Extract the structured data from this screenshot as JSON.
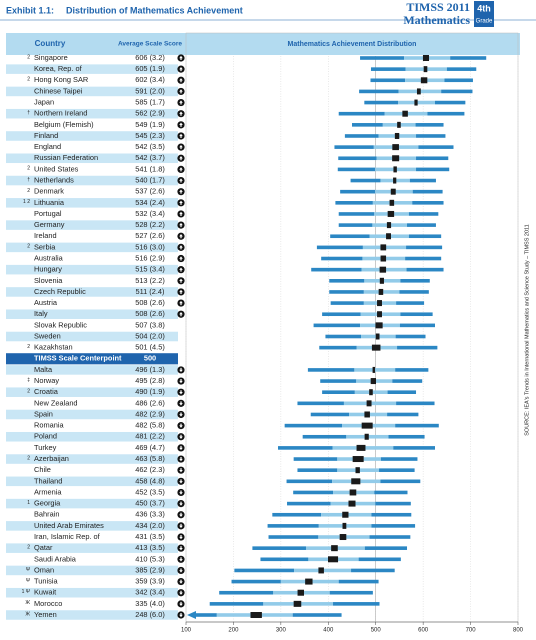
{
  "chart_data": {
    "type": "distribution",
    "exhibit": "Exhibit 1.1:",
    "title": "Distribution of Mathematics Achievement",
    "logo": {
      "name": "TIMSS 2011",
      "subject": "Mathematics",
      "grade": "4th",
      "grade_word": "Grade"
    },
    "country_header": "Country",
    "score_header": "Average Scale Score",
    "dist_header": "Mathematics Achievement Distribution",
    "source": "SOURCE: IEA's Trends in International Mathematics and Science Study – TIMSS 2011",
    "centerpoint": {
      "label": "TIMSS Scale Centerpoint",
      "value": 500
    },
    "categories": [
      "Singapore",
      "Korea, Rep. of",
      "Hong Kong SAR",
      "Chinese Taipei",
      "Japan",
      "Northern Ireland",
      "Belgium (Flemish)",
      "Finland",
      "England",
      "Russian Federation",
      "United States",
      "Netherlands",
      "Denmark",
      "Lithuania",
      "Portugal",
      "Germany",
      "Ireland",
      "Serbia",
      "Australia",
      "Hungary",
      "Slovenia",
      "Czech Republic",
      "Austria",
      "Italy",
      "Slovak Republic",
      "Sweden",
      "Kazakhstan",
      "Malta",
      "Norway",
      "Croatia",
      "New Zealand",
      "Spain",
      "Romania",
      "Poland",
      "Turkey",
      "Azerbaijan",
      "Chile",
      "Thailand",
      "Armenia",
      "Georgia",
      "Bahrain",
      "United Arab Emirates",
      "Iran, Islamic Rep. of",
      "Qatar",
      "Saudi Arabia",
      "Oman",
      "Tunisia",
      "Kuwait",
      "Morocco",
      "Yemen"
    ],
    "notes": [
      "2",
      null,
      "2",
      null,
      null,
      "†",
      null,
      null,
      null,
      null,
      "2",
      "†",
      "2",
      "1 2",
      null,
      null,
      null,
      "2",
      null,
      null,
      null,
      null,
      null,
      null,
      null,
      null,
      "2",
      null,
      "‡",
      "2",
      null,
      null,
      null,
      null,
      null,
      "2",
      null,
      null,
      null,
      "1",
      null,
      null,
      null,
      "2",
      null,
      "Ψ",
      "Ψ",
      "1 Ψ",
      "Ж",
      "Ж"
    ],
    "values": [
      606,
      605,
      602,
      591,
      585,
      562,
      549,
      545,
      542,
      542,
      541,
      540,
      537,
      534,
      532,
      528,
      527,
      516,
      516,
      515,
      513,
      511,
      508,
      508,
      507,
      504,
      501,
      496,
      495,
      490,
      486,
      482,
      482,
      481,
      469,
      463,
      462,
      458,
      452,
      450,
      436,
      434,
      431,
      413,
      410,
      385,
      359,
      342,
      335,
      248
    ],
    "value_labels": [
      "606 (3.2)",
      "605 (1.9)",
      "602 (3.4)",
      "591 (2.0)",
      "585 (1.7)",
      "562 (2.9)",
      "549 (1.9)",
      "545 (2.3)",
      "542 (3.5)",
      "542 (3.7)",
      "541 (1.8)",
      "540 (1.7)",
      "537 (2.6)",
      "534 (2.4)",
      "532 (3.4)",
      "528 (2.2)",
      "527 (2.6)",
      "516 (3.0)",
      "516 (2.9)",
      "515 (3.4)",
      "513 (2.2)",
      "511 (2.4)",
      "508 (2.6)",
      "508 (2.6)",
      "507 (3.8)",
      "504 (2.0)",
      "501 (4.5)",
      "496 (1.3)",
      "495 (2.8)",
      "490 (1.9)",
      "486 (2.6)",
      "482 (2.9)",
      "482 (5.8)",
      "481 (2.2)",
      "469 (4.7)",
      "463 (5.8)",
      "462 (2.3)",
      "458 (4.8)",
      "452 (3.5)",
      "450 (3.7)",
      "436 (3.3)",
      "434 (2.0)",
      "431 (3.5)",
      "413 (3.5)",
      "410 (5.3)",
      "385 (2.9)",
      "359 (3.9)",
      "342 (3.4)",
      "335 (4.0)",
      "248 (6.0)"
    ],
    "se": [
      3.2,
      1.9,
      3.4,
      2.0,
      1.7,
      2.9,
      1.9,
      2.3,
      3.5,
      3.7,
      1.8,
      1.7,
      2.6,
      2.4,
      3.4,
      2.2,
      2.6,
      3.0,
      2.9,
      3.4,
      2.2,
      2.4,
      2.6,
      2.6,
      3.8,
      2.0,
      4.5,
      1.3,
      2.8,
      1.9,
      2.6,
      2.9,
      5.8,
      2.2,
      4.7,
      5.8,
      2.3,
      4.8,
      3.5,
      3.7,
      3.3,
      2.0,
      3.5,
      3.5,
      5.3,
      2.9,
      3.9,
      3.4,
      4.0,
      6.0
    ],
    "sig": [
      "higher",
      "higher",
      "higher",
      "higher",
      "higher",
      "higher",
      "higher",
      "higher",
      "higher",
      "higher",
      "higher",
      "higher",
      "higher",
      "higher",
      "higher",
      "higher",
      "higher",
      "higher",
      "higher",
      "higher",
      "higher",
      "higher",
      "higher",
      "higher",
      "none",
      "none",
      "none",
      "lower",
      "lower",
      "lower",
      "lower",
      "lower",
      "lower",
      "lower",
      "lower",
      "lower",
      "lower",
      "lower",
      "lower",
      "lower",
      "lower",
      "lower",
      "lower",
      "lower",
      "lower",
      "lower",
      "lower",
      "lower",
      "lower",
      "lower"
    ],
    "p5": [
      467,
      490,
      489,
      465,
      476,
      422,
      450,
      435,
      413,
      421,
      420,
      447,
      425,
      415,
      422,
      422,
      404,
      376,
      385,
      364,
      402,
      402,
      405,
      387,
      369,
      394,
      381,
      357,
      383,
      387,
      335,
      363,
      308,
      346,
      294,
      327,
      335,
      312,
      326,
      313,
      282,
      272,
      274,
      240,
      257,
      202,
      196,
      170,
      150,
      null
    ],
    "p25": [
      560,
      563,
      562,
      548,
      547,
      519,
      515,
      506,
      496,
      502,
      499,
      510,
      499,
      494,
      497,
      493,
      487,
      473,
      472,
      470,
      476,
      475,
      475,
      468,
      467,
      469,
      460,
      455,
      459,
      456,
      433,
      444,
      429,
      438,
      409,
      419,
      419,
      408,
      410,
      405,
      385,
      380,
      379,
      353,
      358,
      328,
      300,
      284,
      263,
      165
    ],
    "p75": [
      657,
      650,
      645,
      638,
      625,
      609,
      584,
      585,
      590,
      585,
      585,
      572,
      578,
      577,
      570,
      566,
      570,
      564,
      562,
      565,
      552,
      550,
      543,
      552,
      551,
      542,
      545,
      541,
      535,
      525,
      543,
      524,
      541,
      527,
      537,
      511,
      507,
      510,
      497,
      499,
      491,
      491,
      487,
      477,
      464,
      448,
      422,
      403,
      410,
      325
    ],
    "p95": [
      733,
      712,
      705,
      704,
      689,
      687,
      643,
      647,
      664,
      653,
      655,
      627,
      641,
      643,
      632,
      627,
      638,
      640,
      638,
      643,
      614,
      612,
      602,
      620,
      625,
      605,
      630,
      611,
      598,
      585,
      624,
      590,
      633,
      603,
      625,
      588,
      582,
      594,
      567,
      574,
      575,
      583,
      573,
      566,
      553,
      540,
      506,
      494,
      508,
      428
    ],
    "xlim": [
      100,
      800
    ],
    "xticks": [
      100,
      200,
      300,
      400,
      500,
      600,
      700,
      800
    ],
    "colors": {
      "tail": "#2b87c4",
      "middle": "#92cbe9",
      "ci": "#1a1a1a",
      "header": "#b3dbf0",
      "stripe": "#c9e6f5",
      "accent": "#1f64ad"
    }
  }
}
